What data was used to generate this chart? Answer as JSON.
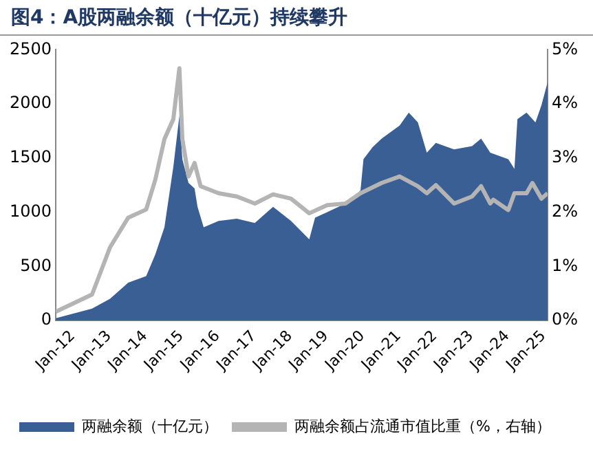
{
  "chart_data": {
    "type": "area",
    "title": "图4：A股两融余额（十亿元）持续攀升",
    "xlim": [
      "2012-01-01",
      "2025-08-01"
    ],
    "xticks": [
      {
        "value": "2012-01-01",
        "label": "Jan-12"
      },
      {
        "value": "2013-01-01",
        "label": "Jan-13"
      },
      {
        "value": "2014-01-01",
        "label": "Jan-14"
      },
      {
        "value": "2015-01-01",
        "label": "Jan-15"
      },
      {
        "value": "2016-01-01",
        "label": "Jan-16"
      },
      {
        "value": "2017-01-01",
        "label": "Jan-17"
      },
      {
        "value": "2018-01-01",
        "label": "Jan-18"
      },
      {
        "value": "2019-01-01",
        "label": "Jan-19"
      },
      {
        "value": "2020-01-01",
        "label": "Jan-20"
      },
      {
        "value": "2021-01-01",
        "label": "Jan-21"
      },
      {
        "value": "2022-01-01",
        "label": "Jan-22"
      },
      {
        "value": "2023-01-01",
        "label": "Jan-23"
      },
      {
        "value": "2024-01-01",
        "label": "Jan-24"
      },
      {
        "value": "2025-01-01",
        "label": "Jan-25"
      }
    ],
    "ylim": [
      0,
      2500
    ],
    "yticks": [
      0,
      500,
      1000,
      1500,
      2000,
      2500
    ],
    "y2lim": [
      0,
      5
    ],
    "y2ticks": [
      {
        "value": 0,
        "label": "0%"
      },
      {
        "value": 1,
        "label": "1%"
      },
      {
        "value": 2,
        "label": "2%"
      },
      {
        "value": 3,
        "label": "3%"
      },
      {
        "value": 4,
        "label": "4%"
      },
      {
        "value": 5,
        "label": "5%"
      }
    ],
    "grid": false,
    "legend": "bottom",
    "series": [
      {
        "name": "两融余额（十亿元）",
        "type": "area",
        "color": "#3a5f94",
        "x": [
          "2012-01-01",
          "2013-01-01",
          "2013-07-01",
          "2014-01-01",
          "2014-07-01",
          "2014-10-01",
          "2015-01-01",
          "2015-04-01",
          "2015-06-01",
          "2015-07-01",
          "2015-09-01",
          "2015-11-01",
          "2015-12-01",
          "2016-02-01",
          "2016-07-01",
          "2017-01-01",
          "2017-07-01",
          "2018-01-01",
          "2018-07-01",
          "2019-01-01",
          "2019-03-01",
          "2019-07-01",
          "2020-01-01",
          "2020-06-01",
          "2020-07-01",
          "2020-10-01",
          "2021-01-01",
          "2021-07-01",
          "2021-10-01",
          "2022-01-01",
          "2022-04-01",
          "2022-07-01",
          "2023-01-01",
          "2023-07-01",
          "2023-10-01",
          "2024-01-01",
          "2024-07-01",
          "2024-09-01",
          "2024-10-01",
          "2025-01-01",
          "2025-04-01",
          "2025-06-01",
          "2025-08-01"
        ],
        "values": [
          20,
          110,
          200,
          350,
          410,
          610,
          860,
          1420,
          1890,
          1490,
          1270,
          1220,
          1050,
          860,
          920,
          940,
          900,
          1050,
          920,
          750,
          950,
          1000,
          1080,
          1200,
          1490,
          1600,
          1680,
          1800,
          1920,
          1830,
          1550,
          1640,
          1580,
          1610,
          1680,
          1550,
          1490,
          1400,
          1860,
          1920,
          1830,
          1990,
          2200
        ]
      },
      {
        "name": "两融余额占流通市值比重（%，右轴）",
        "type": "line",
        "axis": "y2",
        "color": "#b4b4b4",
        "x": [
          "2012-01-01",
          "2013-01-01",
          "2013-07-01",
          "2014-01-01",
          "2014-07-01",
          "2014-10-01",
          "2015-01-01",
          "2015-04-01",
          "2015-06-01",
          "2015-07-01",
          "2015-09-01",
          "2015-11-01",
          "2016-01-01",
          "2016-07-01",
          "2017-01-01",
          "2017-07-01",
          "2018-01-01",
          "2018-07-01",
          "2019-01-01",
          "2019-07-01",
          "2020-01-01",
          "2020-06-01",
          "2021-01-01",
          "2021-07-01",
          "2022-01-01",
          "2022-04-01",
          "2022-07-01",
          "2023-01-01",
          "2023-07-01",
          "2023-10-01",
          "2024-01-01",
          "2024-02-01",
          "2024-07-01",
          "2024-09-01",
          "2025-01-01",
          "2025-03-01",
          "2025-06-01",
          "2025-08-01"
        ],
        "values": [
          0.16,
          0.48,
          1.35,
          1.9,
          2.05,
          2.6,
          3.35,
          3.72,
          4.66,
          3.35,
          2.66,
          2.91,
          2.48,
          2.35,
          2.29,
          2.16,
          2.33,
          2.25,
          1.98,
          2.13,
          2.16,
          2.35,
          2.54,
          2.66,
          2.48,
          2.35,
          2.5,
          2.16,
          2.29,
          2.48,
          2.16,
          2.23,
          2.04,
          2.35,
          2.35,
          2.54,
          2.25,
          2.35
        ]
      }
    ]
  }
}
